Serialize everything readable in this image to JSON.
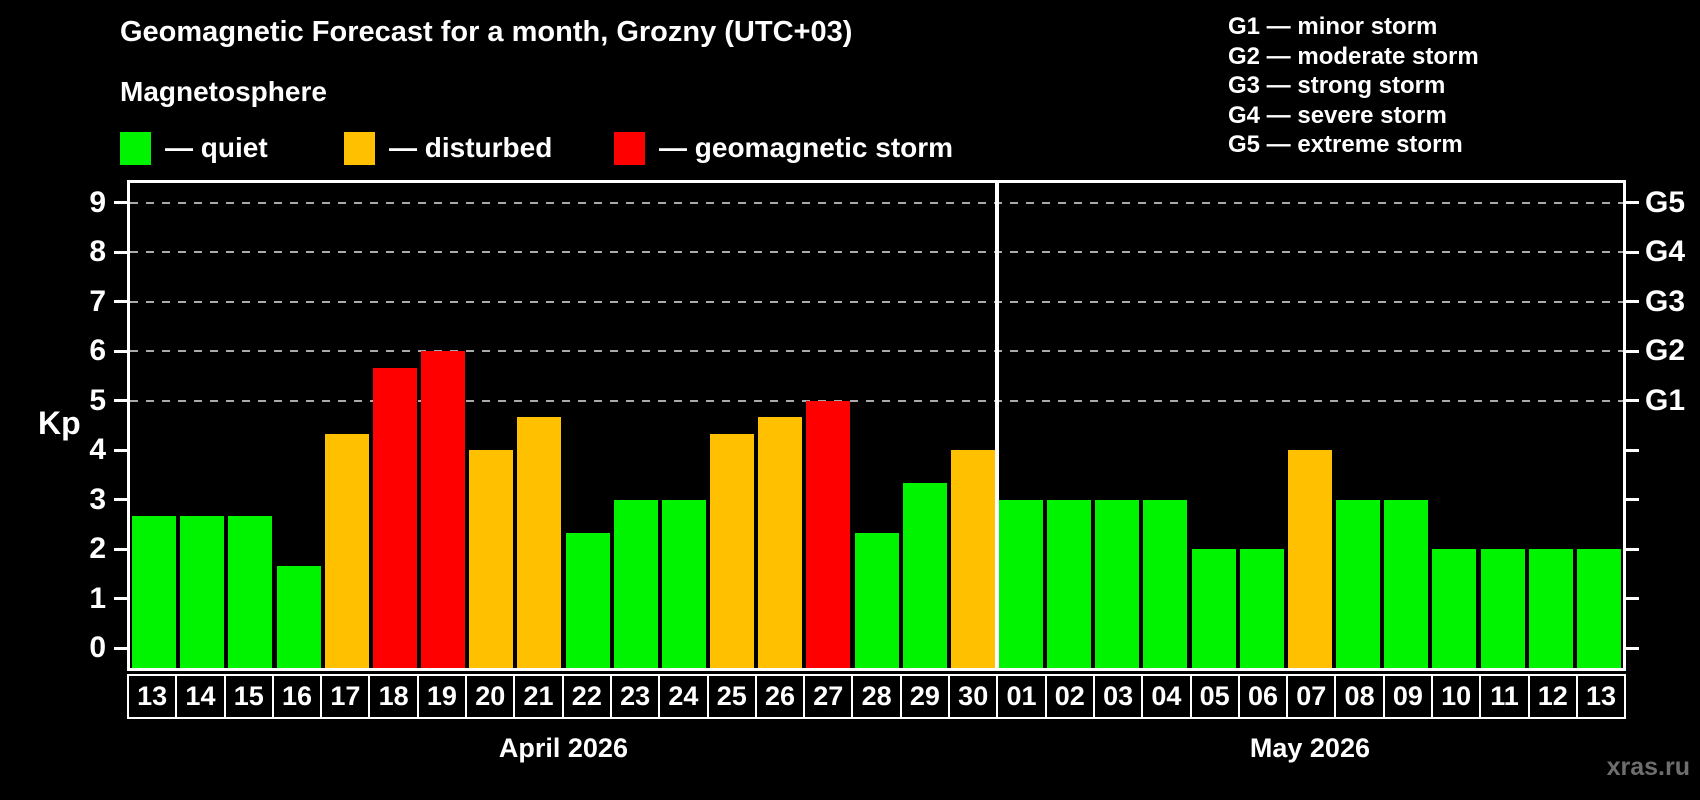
{
  "header": {
    "title": "Geomagnetic Forecast for a month, Grozny (UTC+03)",
    "subtitle": "Magnetosphere"
  },
  "legend": {
    "items": [
      {
        "status": "quiet",
        "label": "— quiet",
        "color": "#00f400"
      },
      {
        "status": "disturbed",
        "label": "— disturbed",
        "color": "#ffc000"
      },
      {
        "status": "storm",
        "label": "— geomagnetic storm",
        "color": "#ff0000"
      }
    ]
  },
  "storm_scale_legend": {
    "lines": [
      "G1 — minor storm",
      "G2 — moderate storm",
      "G3 — strong storm",
      "G4 — severe storm",
      "G5 — extreme storm"
    ]
  },
  "watermark": "xras.ru",
  "chart_data": {
    "type": "bar",
    "ylabel": "Kp",
    "ylim": [
      -0.4,
      9.4
    ],
    "y_ticks": [
      0,
      1,
      2,
      3,
      4,
      5,
      6,
      7,
      8,
      9
    ],
    "gridlines_at": [
      5,
      6,
      7,
      8,
      9
    ],
    "grid": "dashed, storm levels only",
    "legend_position": "top",
    "right_axis_labels": [
      {
        "value": 5,
        "label": "G1"
      },
      {
        "value": 6,
        "label": "G2"
      },
      {
        "value": 7,
        "label": "G3"
      },
      {
        "value": 8,
        "label": "G4"
      },
      {
        "value": 9,
        "label": "G5"
      }
    ],
    "colors": {
      "quiet": "#00f400",
      "disturbed": "#ffc000",
      "storm": "#ff0000"
    },
    "months": [
      {
        "label": "April 2026",
        "days": [
          {
            "day": "13",
            "kp": 2.67,
            "status": "quiet"
          },
          {
            "day": "14",
            "kp": 2.67,
            "status": "quiet"
          },
          {
            "day": "15",
            "kp": 2.67,
            "status": "quiet"
          },
          {
            "day": "16",
            "kp": 1.67,
            "status": "quiet"
          },
          {
            "day": "17",
            "kp": 4.33,
            "status": "disturbed"
          },
          {
            "day": "18",
            "kp": 5.67,
            "status": "storm"
          },
          {
            "day": "19",
            "kp": 6.0,
            "status": "storm"
          },
          {
            "day": "20",
            "kp": 4.0,
            "status": "disturbed"
          },
          {
            "day": "21",
            "kp": 4.67,
            "status": "disturbed"
          },
          {
            "day": "22",
            "kp": 2.33,
            "status": "quiet"
          },
          {
            "day": "23",
            "kp": 3.0,
            "status": "quiet"
          },
          {
            "day": "24",
            "kp": 3.0,
            "status": "quiet"
          },
          {
            "day": "25",
            "kp": 4.33,
            "status": "disturbed"
          },
          {
            "day": "26",
            "kp": 4.67,
            "status": "disturbed"
          },
          {
            "day": "27",
            "kp": 5.0,
            "status": "storm"
          },
          {
            "day": "28",
            "kp": 2.33,
            "status": "quiet"
          },
          {
            "day": "29",
            "kp": 3.33,
            "status": "quiet"
          },
          {
            "day": "30",
            "kp": 4.0,
            "status": "disturbed"
          }
        ]
      },
      {
        "label": "May 2026",
        "days": [
          {
            "day": "01",
            "kp": 3.0,
            "status": "quiet"
          },
          {
            "day": "02",
            "kp": 3.0,
            "status": "quiet"
          },
          {
            "day": "03",
            "kp": 3.0,
            "status": "quiet"
          },
          {
            "day": "04",
            "kp": 3.0,
            "status": "quiet"
          },
          {
            "day": "05",
            "kp": 2.0,
            "status": "quiet"
          },
          {
            "day": "06",
            "kp": 2.0,
            "status": "quiet"
          },
          {
            "day": "07",
            "kp": 4.0,
            "status": "disturbed"
          },
          {
            "day": "08",
            "kp": 3.0,
            "status": "quiet"
          },
          {
            "day": "09",
            "kp": 3.0,
            "status": "quiet"
          },
          {
            "day": "10",
            "kp": 2.0,
            "status": "quiet"
          },
          {
            "day": "11",
            "kp": 2.0,
            "status": "quiet"
          },
          {
            "day": "12",
            "kp": 2.0,
            "status": "quiet"
          },
          {
            "day": "13",
            "kp": 2.0,
            "status": "quiet"
          }
        ]
      }
    ]
  }
}
